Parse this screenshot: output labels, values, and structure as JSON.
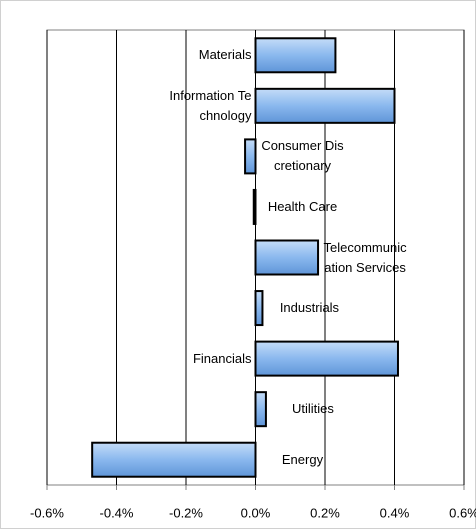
{
  "chart_data": {
    "type": "bar",
    "orientation": "horizontal",
    "categories": [
      "Materials",
      "Information Technology",
      "Consumer Discretionary",
      "Health Care",
      "Telecommunication Services",
      "Industrials",
      "Financials",
      "Utilities",
      "Energy"
    ],
    "values": [
      0.23,
      0.4,
      -0.03,
      -0.005,
      0.18,
      0.02,
      0.41,
      0.03,
      -0.47
    ],
    "color": "#8ab8ee",
    "xlim": [
      -0.6,
      0.6
    ],
    "xticks": [
      {
        "value": -0.6,
        "label": "-0.6%"
      },
      {
        "value": -0.4,
        "label": "-0.4%"
      },
      {
        "value": -0.2,
        "label": "-0.2%"
      },
      {
        "value": 0.0,
        "label": "0.0%"
      },
      {
        "value": 0.2,
        "label": "0.2%"
      },
      {
        "value": 0.4,
        "label": "0.4%"
      },
      {
        "value": 0.6,
        "label": "0.6%"
      }
    ],
    "grid": true
  }
}
